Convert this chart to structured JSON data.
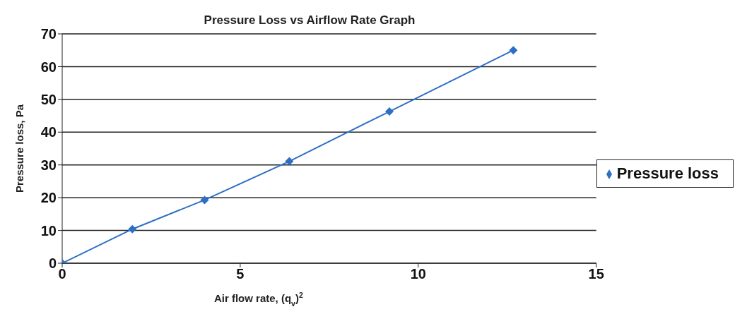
{
  "chart_data": {
    "type": "line",
    "title": "Pressure Loss vs Airflow Rate Graph",
    "xlabel": "Air flow rate, (q$_{v}$)$^{2}$",
    "ylabel": "Pressure loss, Pa",
    "x": [
      0,
      1.97,
      4.0,
      6.38,
      9.19,
      12.67
    ],
    "series": [
      {
        "name": "Pressure loss",
        "color": "#2e6fc4",
        "values": [
          0,
          10.4,
          19.3,
          31.1,
          46.3,
          65
        ]
      }
    ],
    "xlim": [
      0,
      15
    ],
    "xticks": [
      0,
      5,
      10,
      15
    ],
    "ylim": [
      0,
      70
    ],
    "yticks": [
      0,
      10,
      20,
      30,
      40,
      50,
      60,
      70
    ],
    "grid": "y",
    "legend": "right",
    "marker": "diamond",
    "line_style": "solid"
  }
}
